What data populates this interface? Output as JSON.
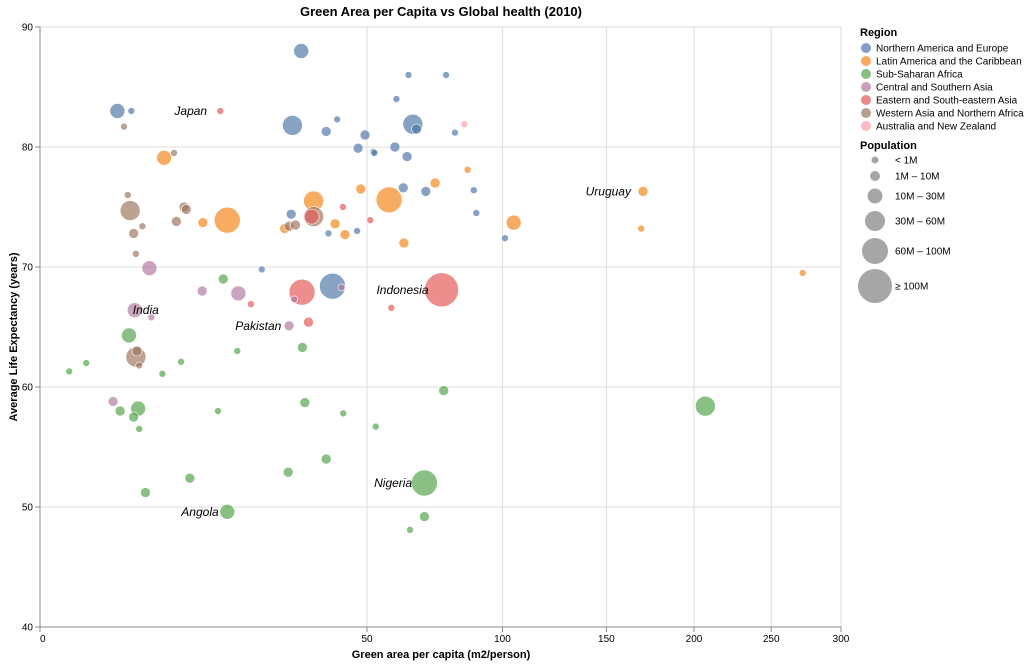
{
  "chart_data": {
    "type": "scatter",
    "title": "Green Area per Capita vs Global health (2010)",
    "xlabel": "Green area per capita (m2/person)",
    "ylabel": "Average Life Expectancy (years)",
    "x_scale": "sqrt",
    "xlim": [
      0,
      300
    ],
    "ylim": [
      40,
      90
    ],
    "x_ticks": [
      0,
      50,
      100,
      150,
      200,
      250,
      300
    ],
    "y_ticks": [
      40,
      50,
      60,
      70,
      80,
      90
    ],
    "grid": true,
    "legend_position": "right",
    "region_legend": {
      "title": "Region",
      "entries": [
        {
          "name": "Northern America and Europe",
          "color": "#4c78a8"
        },
        {
          "name": "Latin America and the Caribbean",
          "color": "#f58518"
        },
        {
          "name": "Sub-Saharan Africa",
          "color": "#54a24b"
        },
        {
          "name": "Central and Southern Asia",
          "color": "#b279a2"
        },
        {
          "name": "Eastern and South-eastern Asia",
          "color": "#e45756"
        },
        {
          "name": "Western Asia and Northern Africa",
          "color": "#9d755d"
        },
        {
          "name": "Australia and New Zealand",
          "color": "#ff9da6"
        }
      ]
    },
    "size_legend": {
      "title": "Population",
      "entries": [
        {
          "label": "< 1M",
          "size_class": 0
        },
        {
          "label": "1M – 10M",
          "size_class": 1
        },
        {
          "label": "10M – 30M",
          "size_class": 2
        },
        {
          "label": "30M – 60M",
          "size_class": 3
        },
        {
          "label": "60M – 100M",
          "size_class": 4
        },
        {
          "label": "≥ 100M",
          "size_class": 5
        }
      ]
    },
    "annotations": [
      {
        "text": "Japan",
        "x": 15,
        "y": 83
      },
      {
        "text": "India",
        "x": 8,
        "y": 66.4
      },
      {
        "text": "Pakistan",
        "x": 30,
        "y": 65.1
      },
      {
        "text": "Indonesia",
        "x": 75,
        "y": 68.1
      },
      {
        "text": "Uruguay",
        "x": 170,
        "y": 76.3
      },
      {
        "text": "Nigeria",
        "x": 69,
        "y": 52
      },
      {
        "text": "Angola",
        "x": 17,
        "y": 49.6
      }
    ],
    "points": [
      {
        "x": 0.4,
        "y": 61.3,
        "region": 2,
        "size_class": 0
      },
      {
        "x": 1.0,
        "y": 62,
        "region": 2,
        "size_class": 0
      },
      {
        "x": 2.5,
        "y": 58.8,
        "region": 3,
        "size_class": 1
      },
      {
        "x": 2.8,
        "y": 83,
        "region": 0,
        "size_class": 2
      },
      {
        "x": 3.0,
        "y": 58,
        "region": 2,
        "size_class": 1
      },
      {
        "x": 3.3,
        "y": 81.7,
        "region": 5,
        "size_class": 0
      },
      {
        "x": 3.6,
        "y": 76,
        "region": 5,
        "size_class": 0
      },
      {
        "x": 3.7,
        "y": 64.3,
        "region": 2,
        "size_class": 2
      },
      {
        "x": 3.8,
        "y": 74.7,
        "region": 5,
        "size_class": 3
      },
      {
        "x": 3.9,
        "y": 83,
        "region": 0,
        "size_class": 0
      },
      {
        "x": 4.1,
        "y": 57.5,
        "region": 2,
        "size_class": 1
      },
      {
        "x": 4.1,
        "y": 72.8,
        "region": 5,
        "size_class": 1
      },
      {
        "x": 4.2,
        "y": 66.4,
        "region": 3,
        "size_class": 2
      },
      {
        "x": 4.3,
        "y": 62.5,
        "region": 5,
        "size_class": 3
      },
      {
        "x": 4.3,
        "y": 71.1,
        "region": 5,
        "size_class": 0
      },
      {
        "x": 4.4,
        "y": 63,
        "region": 5,
        "size_class": 1
      },
      {
        "x": 4.5,
        "y": 58.2,
        "region": 2,
        "size_class": 2
      },
      {
        "x": 4.6,
        "y": 61.8,
        "region": 5,
        "size_class": 0
      },
      {
        "x": 4.6,
        "y": 56.5,
        "region": 2,
        "size_class": 0
      },
      {
        "x": 4.9,
        "y": 73.4,
        "region": 5,
        "size_class": 0
      },
      {
        "x": 5.2,
        "y": 51.2,
        "region": 2,
        "size_class": 1
      },
      {
        "x": 5.6,
        "y": 69.9,
        "region": 3,
        "size_class": 2
      },
      {
        "x": 5.8,
        "y": 65.8,
        "region": 3,
        "size_class": 0
      },
      {
        "x": 7.0,
        "y": 61.1,
        "region": 2,
        "size_class": 0
      },
      {
        "x": 7.2,
        "y": 79.1,
        "region": 1,
        "size_class": 2
      },
      {
        "x": 8.4,
        "y": 79.5,
        "region": 5,
        "size_class": 0
      },
      {
        "x": 8.7,
        "y": 73.8,
        "region": 5,
        "size_class": 1
      },
      {
        "x": 9.3,
        "y": 62.1,
        "region": 2,
        "size_class": 0
      },
      {
        "x": 9.7,
        "y": 75,
        "region": 5,
        "size_class": 1
      },
      {
        "x": 10.0,
        "y": 74.8,
        "region": 5,
        "size_class": 1
      },
      {
        "x": 10.5,
        "y": 52.4,
        "region": 2,
        "size_class": 1
      },
      {
        "x": 12.3,
        "y": 68,
        "region": 3,
        "size_class": 1
      },
      {
        "x": 12.4,
        "y": 73.7,
        "region": 1,
        "size_class": 1
      },
      {
        "x": 14.8,
        "y": 58,
        "region": 2,
        "size_class": 0
      },
      {
        "x": 15.2,
        "y": 83,
        "region": 4,
        "size_class": 0
      },
      {
        "x": 15.7,
        "y": 69,
        "region": 2,
        "size_class": 1
      },
      {
        "x": 16.4,
        "y": 73.9,
        "region": 1,
        "size_class": 4
      },
      {
        "x": 16.4,
        "y": 49.6,
        "region": 2,
        "size_class": 2
      },
      {
        "x": 18.2,
        "y": 63,
        "region": 2,
        "size_class": 0
      },
      {
        "x": 18.4,
        "y": 67.8,
        "region": 3,
        "size_class": 2
      },
      {
        "x": 20.8,
        "y": 66.9,
        "region": 4,
        "size_class": 0
      },
      {
        "x": 23.0,
        "y": 69.8,
        "region": 0,
        "size_class": 0
      },
      {
        "x": 28.0,
        "y": 73.2,
        "region": 1,
        "size_class": 1
      },
      {
        "x": 28.8,
        "y": 52.9,
        "region": 2,
        "size_class": 1
      },
      {
        "x": 29.0,
        "y": 73.4,
        "region": 5,
        "size_class": 1
      },
      {
        "x": 29.0,
        "y": 65.1,
        "region": 3,
        "size_class": 1
      },
      {
        "x": 29.5,
        "y": 74.4,
        "region": 0,
        "size_class": 1
      },
      {
        "x": 29.8,
        "y": 81.8,
        "region": 0,
        "size_class": 3
      },
      {
        "x": 30.2,
        "y": 67.3,
        "region": 3,
        "size_class": 0
      },
      {
        "x": 30.5,
        "y": 73.5,
        "region": 5,
        "size_class": 1
      },
      {
        "x": 31.9,
        "y": 88,
        "region": 0,
        "size_class": 2
      },
      {
        "x": 32.2,
        "y": 63.3,
        "region": 2,
        "size_class": 1
      },
      {
        "x": 32.1,
        "y": 67.9,
        "region": 4,
        "size_class": 4
      },
      {
        "x": 32.8,
        "y": 58.7,
        "region": 2,
        "size_class": 1
      },
      {
        "x": 33.7,
        "y": 65.4,
        "region": 4,
        "size_class": 1
      },
      {
        "x": 34.5,
        "y": 74.2,
        "region": 4,
        "size_class": 2
      },
      {
        "x": 35.0,
        "y": 75.5,
        "region": 1,
        "size_class": 3
      },
      {
        "x": 35.0,
        "y": 74.2,
        "region": 5,
        "size_class": 3
      },
      {
        "x": 38.3,
        "y": 81.3,
        "region": 0,
        "size_class": 1
      },
      {
        "x": 38.3,
        "y": 54,
        "region": 2,
        "size_class": 1
      },
      {
        "x": 38.9,
        "y": 72.8,
        "region": 0,
        "size_class": 0
      },
      {
        "x": 40.0,
        "y": 68.4,
        "region": 0,
        "size_class": 4
      },
      {
        "x": 40.7,
        "y": 73.6,
        "region": 1,
        "size_class": 1
      },
      {
        "x": 41.3,
        "y": 82.3,
        "region": 0,
        "size_class": 0
      },
      {
        "x": 42.5,
        "y": 68.3,
        "region": 3,
        "size_class": 0
      },
      {
        "x": 42.9,
        "y": 75,
        "region": 4,
        "size_class": 0
      },
      {
        "x": 43.0,
        "y": 57.8,
        "region": 2,
        "size_class": 0
      },
      {
        "x": 43.5,
        "y": 72.7,
        "region": 1,
        "size_class": 1
      },
      {
        "x": 47.0,
        "y": 73,
        "region": 0,
        "size_class": 0
      },
      {
        "x": 47.3,
        "y": 79.9,
        "region": 0,
        "size_class": 1
      },
      {
        "x": 48.1,
        "y": 76.5,
        "region": 1,
        "size_class": 1
      },
      {
        "x": 49.4,
        "y": 81,
        "region": 0,
        "size_class": 1
      },
      {
        "x": 51.0,
        "y": 73.9,
        "region": 4,
        "size_class": 0
      },
      {
        "x": 52.0,
        "y": 79.6,
        "region": 0,
        "size_class": 0
      },
      {
        "x": 52.3,
        "y": 79.5,
        "region": 0,
        "size_class": 0
      },
      {
        "x": 52.7,
        "y": 56.7,
        "region": 2,
        "size_class": 0
      },
      {
        "x": 57.0,
        "y": 75.6,
        "region": 1,
        "size_class": 4
      },
      {
        "x": 57.7,
        "y": 66.6,
        "region": 4,
        "size_class": 0
      },
      {
        "x": 58.9,
        "y": 80,
        "region": 0,
        "size_class": 1
      },
      {
        "x": 59.4,
        "y": 84,
        "region": 0,
        "size_class": 0
      },
      {
        "x": 61.7,
        "y": 76.6,
        "region": 0,
        "size_class": 1
      },
      {
        "x": 61.9,
        "y": 72,
        "region": 1,
        "size_class": 1
      },
      {
        "x": 63.0,
        "y": 79.2,
        "region": 0,
        "size_class": 1
      },
      {
        "x": 63.5,
        "y": 86,
        "region": 0,
        "size_class": 0
      },
      {
        "x": 64.0,
        "y": 48.1,
        "region": 2,
        "size_class": 0
      },
      {
        "x": 65.0,
        "y": 81.9,
        "region": 0,
        "size_class": 3
      },
      {
        "x": 66.3,
        "y": 81.5,
        "region": 0,
        "size_class": 1
      },
      {
        "x": 69.1,
        "y": 52,
        "region": 2,
        "size_class": 4
      },
      {
        "x": 69.1,
        "y": 49.2,
        "region": 2,
        "size_class": 1
      },
      {
        "x": 69.6,
        "y": 76.3,
        "region": 0,
        "size_class": 1
      },
      {
        "x": 73.0,
        "y": 77,
        "region": 1,
        "size_class": 1
      },
      {
        "x": 75.4,
        "y": 68.1,
        "region": 4,
        "size_class": 5
      },
      {
        "x": 76.2,
        "y": 59.7,
        "region": 2,
        "size_class": 1
      },
      {
        "x": 77.1,
        "y": 86,
        "region": 0,
        "size_class": 0
      },
      {
        "x": 80.5,
        "y": 81.2,
        "region": 0,
        "size_class": 0
      },
      {
        "x": 84.2,
        "y": 81.9,
        "region": 6,
        "size_class": 0
      },
      {
        "x": 85.5,
        "y": 78.1,
        "region": 1,
        "size_class": 0
      },
      {
        "x": 88.0,
        "y": 76.4,
        "region": 0,
        "size_class": 0
      },
      {
        "x": 89.0,
        "y": 74.5,
        "region": 0,
        "size_class": 0
      },
      {
        "x": 101.1,
        "y": 72.4,
        "region": 0,
        "size_class": 0
      },
      {
        "x": 104.9,
        "y": 73.7,
        "region": 1,
        "size_class": 2
      },
      {
        "x": 170.0,
        "y": 76.3,
        "region": 1,
        "size_class": 1
      },
      {
        "x": 169.0,
        "y": 73.2,
        "region": 1,
        "size_class": 0
      },
      {
        "x": 207.0,
        "y": 58.4,
        "region": 2,
        "size_class": 3
      },
      {
        "x": 272.0,
        "y": 69.5,
        "region": 1,
        "size_class": 0
      }
    ]
  }
}
